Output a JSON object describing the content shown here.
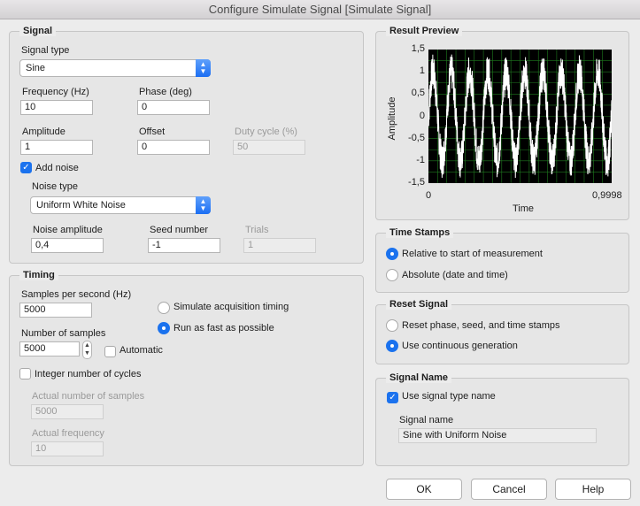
{
  "window": {
    "title": "Configure Simulate Signal [Simulate Signal]"
  },
  "signal": {
    "group_title": "Signal",
    "signal_type_label": "Signal type",
    "signal_type_value": "Sine",
    "frequency_label": "Frequency (Hz)",
    "frequency_value": "10",
    "phase_label": "Phase (deg)",
    "phase_value": "0",
    "amplitude_label": "Amplitude",
    "amplitude_value": "1",
    "offset_label": "Offset",
    "offset_value": "0",
    "duty_cycle_label": "Duty cycle (%)",
    "duty_cycle_value": "50",
    "add_noise_label": "Add noise",
    "add_noise_checked": true,
    "noise_type_label": "Noise type",
    "noise_type_value": "Uniform White Noise",
    "noise_amplitude_label": "Noise amplitude",
    "noise_amplitude_value": "0,4",
    "seed_label": "Seed number",
    "seed_value": "-1",
    "trials_label": "Trials",
    "trials_value": "1"
  },
  "timing": {
    "group_title": "Timing",
    "sps_label": "Samples per second (Hz)",
    "sps_value": "5000",
    "simulate_acq_label": "Simulate acquisition timing",
    "run_fast_label": "Run as fast as possible",
    "selected_mode": "run_fast",
    "num_samples_label": "Number of samples",
    "num_samples_value": "5000",
    "automatic_label": "Automatic",
    "integer_cycles_label": "Integer number of cycles",
    "actual_samples_label": "Actual number of samples",
    "actual_samples_value": "5000",
    "actual_freq_label": "Actual frequency",
    "actual_freq_value": "10"
  },
  "preview": {
    "group_title": "Result Preview",
    "y_label": "Amplitude",
    "x_label": "Time",
    "y_ticks": [
      "1,5",
      "1",
      "0,5",
      "0",
      "-0,5",
      "-1",
      "-1,5"
    ],
    "x_ticks": [
      "0",
      "0,9998"
    ],
    "background": "#000000",
    "grid_color": "#1f7a1f",
    "trace_color": "#ffffff"
  },
  "chart_data": {
    "type": "line",
    "title": "Result Preview",
    "xlabel": "Time",
    "ylabel": "Amplitude",
    "xlim": [
      0,
      0.9998
    ],
    "ylim": [
      -1.5,
      1.5
    ],
    "grid": true,
    "series": [
      {
        "frequency_hz": 10,
        "amplitude": 1,
        "offset": 0,
        "noise_amplitude": 0.4,
        "noise": "uniform",
        "samples": 5000,
        "sample_rate_hz": 5000
      }
    ]
  },
  "timestamps": {
    "group_title": "Time Stamps",
    "relative_label": "Relative to start of measurement",
    "absolute_label": "Absolute (date and time)",
    "selected": "relative"
  },
  "reset": {
    "group_title": "Reset Signal",
    "reset_label": "Reset phase, seed, and time stamps",
    "continuous_label": "Use continuous generation",
    "selected": "continuous"
  },
  "signal_name": {
    "group_title": "Signal Name",
    "use_type_label": "Use signal type name",
    "use_type_checked": true,
    "name_label": "Signal name",
    "name_value": "Sine with Uniform Noise"
  },
  "buttons": {
    "ok": "OK",
    "cancel": "Cancel",
    "help": "Help"
  },
  "colors": {
    "accent": "#1b72ee",
    "window_bg": "#ececec"
  }
}
